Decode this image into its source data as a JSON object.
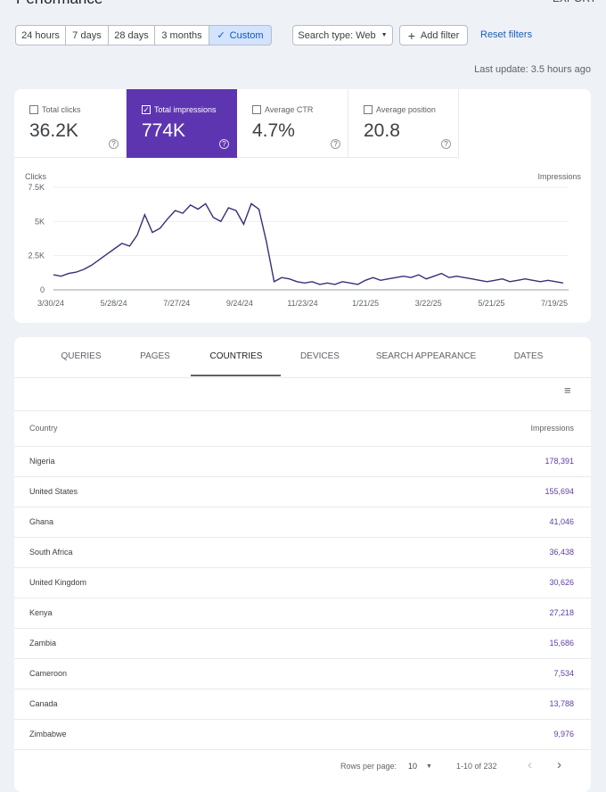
{
  "header": {
    "title": "Performance",
    "export": "EXPORT"
  },
  "filters": {
    "date_ranges": [
      "24 hours",
      "7 days",
      "28 days",
      "3 months",
      "Custom"
    ],
    "selected": 4,
    "search_type": "Search type: Web",
    "add_filter": "Add filter",
    "reset": "Reset filters"
  },
  "last_update": "Last update: 3.5 hours ago",
  "metrics": {
    "selected": 1,
    "items": [
      {
        "label": "Total clicks",
        "value": "36.2K"
      },
      {
        "label": "Total impressions",
        "value": "774K"
      },
      {
        "label": "Average CTR",
        "value": "4.7%"
      },
      {
        "label": "Average position",
        "value": "20.8"
      }
    ]
  },
  "chart": {
    "type": "line",
    "y_label": "Clicks",
    "y2_label": "Impressions",
    "categories": [
      "3/30/24",
      "5/28/24",
      "7/27/24",
      "9/24/24",
      "11/23/24",
      "1/21/25",
      "3/22/25",
      "5/21/25",
      "7/19/25"
    ],
    "ylim": [
      0,
      7500
    ],
    "yticks": [
      0,
      {
        "value": 2500,
        "label": "2.5K"
      },
      {
        "value": 5000,
        "label": "5K"
      },
      {
        "value": 7500,
        "label": "7.5K"
      }
    ],
    "grid": true,
    "series": [
      {
        "name": "Impressions",
        "color": "#3b2d7a",
        "values": [
          1100,
          1000,
          1200,
          1300,
          1500,
          1800,
          2200,
          2600,
          3000,
          3400,
          3200,
          4000,
          5500,
          4200,
          4500,
          5200,
          5800,
          5600,
          6200,
          5900,
          6300,
          5300,
          5000,
          6000,
          5800,
          4800,
          6300,
          5900,
          3500,
          600,
          900,
          800,
          600,
          500,
          600,
          400,
          500,
          400,
          600,
          500,
          400,
          700,
          900,
          700,
          800,
          900,
          1000,
          900,
          1100,
          800,
          1000,
          1200,
          900,
          1000,
          900,
          800,
          700,
          600,
          700,
          800,
          600,
          700,
          800,
          700,
          600,
          700,
          600,
          500
        ]
      }
    ]
  },
  "tabs": {
    "active": 2,
    "items": [
      "QUERIES",
      "PAGES",
      "COUNTRIES",
      "DEVICES",
      "SEARCH APPEARANCE",
      "DATES"
    ]
  },
  "table": {
    "columns": [
      "Country",
      "Impressions"
    ],
    "rows": [
      [
        "Nigeria",
        "178,391"
      ],
      [
        "United States",
        "155,694"
      ],
      [
        "Ghana",
        "41,046"
      ],
      [
        "South Africa",
        "36,438"
      ],
      [
        "United Kingdom",
        "30,626"
      ],
      [
        "Kenya",
        "27,218"
      ],
      [
        "Zambia",
        "15,686"
      ],
      [
        "Cameroon",
        "7,534"
      ],
      [
        "Canada",
        "13,788"
      ],
      [
        "Zimbabwe",
        "9,976"
      ]
    ]
  },
  "pagination": {
    "rows_per_page_label": "Rows per page:",
    "rows_per_page": "10",
    "range": "1-10 of 232"
  }
}
